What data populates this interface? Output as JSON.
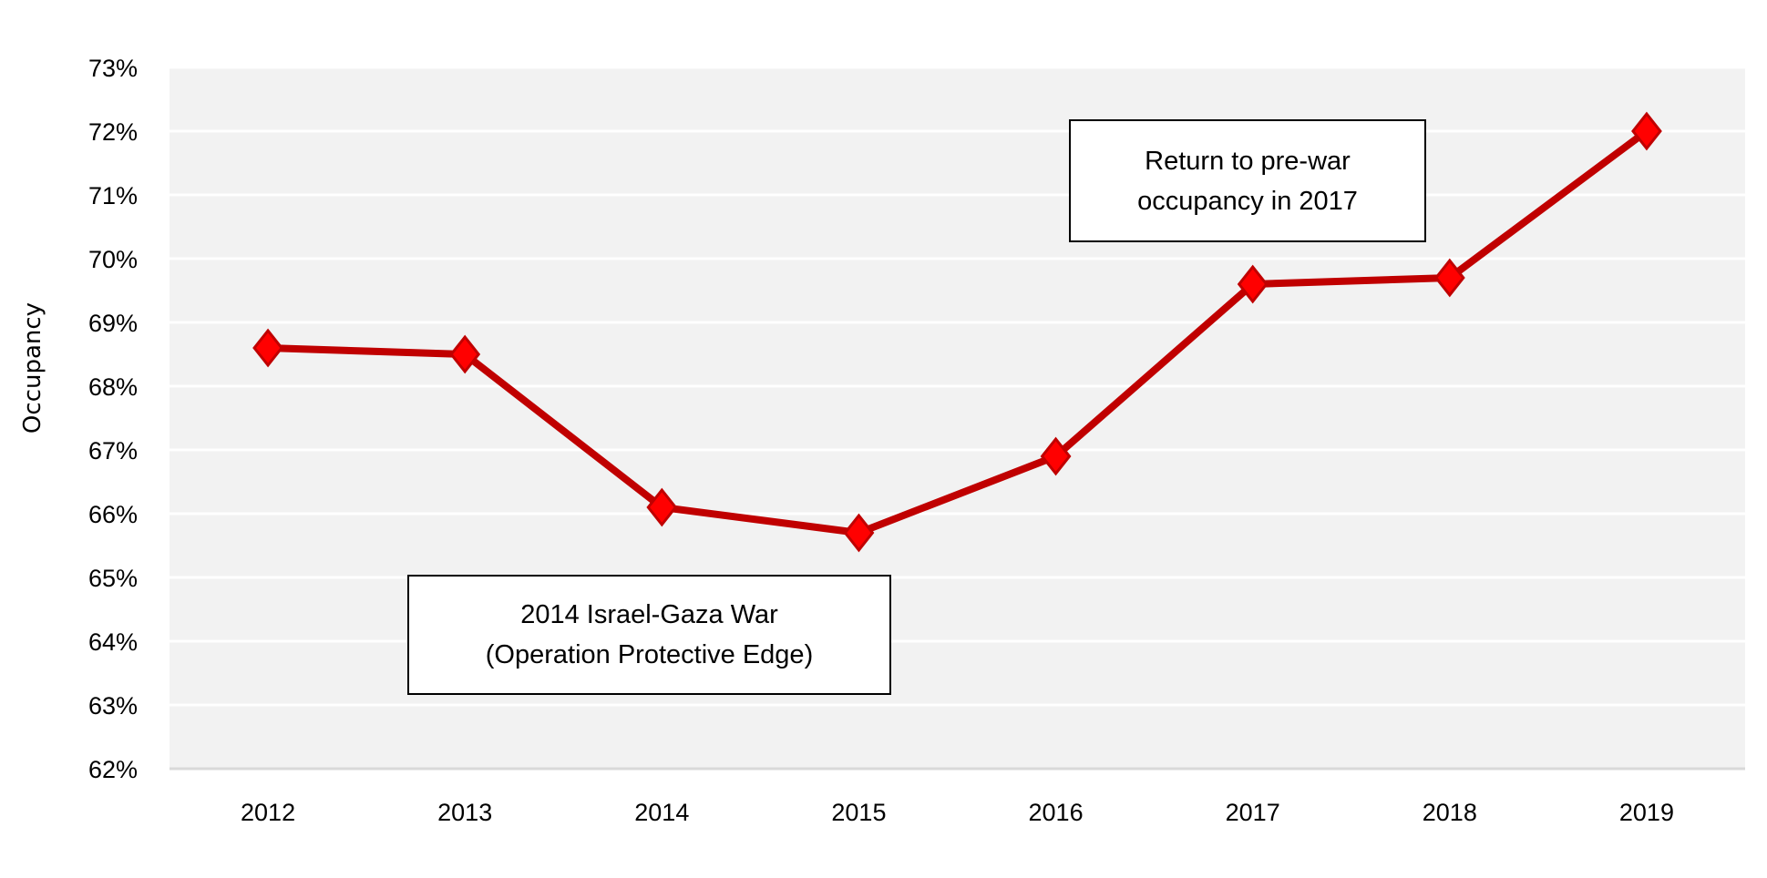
{
  "chart_data": {
    "type": "line",
    "title": "",
    "xlabel": "",
    "ylabel": "Occupancy",
    "categories": [
      "2012",
      "2013",
      "2014",
      "2015",
      "2016",
      "2017",
      "2018",
      "2019"
    ],
    "series": [
      {
        "values": [
          68.6,
          68.5,
          66.1,
          65.7,
          66.9,
          69.6,
          69.7,
          72.0
        ],
        "color": "#c00000",
        "marker": "diamond",
        "marker_color": "#ff0000"
      }
    ],
    "ylim": [
      62,
      73
    ],
    "yticks": [
      "62%",
      "63%",
      "64%",
      "65%",
      "66%",
      "67%",
      "68%",
      "69%",
      "70%",
      "71%",
      "72%",
      "73%"
    ],
    "grid": true,
    "plot_background": "#f2f2f2",
    "annotations": [
      {
        "lines": [
          "Return to pre-war",
          "occupancy in 2017"
        ]
      },
      {
        "lines": [
          "2014 Israel-Gaza War",
          "(Operation Protective Edge)"
        ]
      }
    ]
  }
}
